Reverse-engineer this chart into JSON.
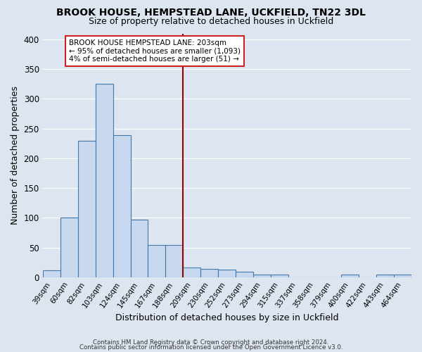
{
  "title1": "BROOK HOUSE, HEMPSTEAD LANE, UCKFIELD, TN22 3DL",
  "title2": "Size of property relative to detached houses in Uckfield",
  "xlabel": "Distribution of detached houses by size in Uckfield",
  "ylabel": "Number of detached properties",
  "footer1": "Contains HM Land Registry data © Crown copyright and database right 2024.",
  "footer2": "Contains public sector information licensed under the Open Government Licence v3.0.",
  "categories": [
    "39sqm",
    "60sqm",
    "82sqm",
    "103sqm",
    "124sqm",
    "145sqm",
    "167sqm",
    "188sqm",
    "209sqm",
    "230sqm",
    "252sqm",
    "273sqm",
    "294sqm",
    "315sqm",
    "337sqm",
    "358sqm",
    "379sqm",
    "400sqm",
    "422sqm",
    "443sqm",
    "464sqm"
  ],
  "values": [
    12,
    101,
    229,
    325,
    239,
    97,
    54,
    54,
    16,
    14,
    13,
    9,
    5,
    4,
    0,
    0,
    0,
    4,
    0,
    4,
    4
  ],
  "bar_color": "#c8d8ee",
  "bar_edge_color": "#4477aa",
  "bg_color": "#dde6f0",
  "grid_color": "#ffffff",
  "vline_color": "#990000",
  "annotation_text": "BROOK HOUSE HEMPSTEAD LANE: 203sqm\n← 95% of detached houses are smaller (1,093)\n4% of semi-detached houses are larger (51) →",
  "annotation_box_color": "#ffffff",
  "annotation_box_edge": "#cc2222",
  "ylim": [
    0,
    410
  ],
  "yticks": [
    0,
    50,
    100,
    150,
    200,
    250,
    300,
    350,
    400
  ],
  "title1_fontsize": 10,
  "title2_fontsize": 9
}
